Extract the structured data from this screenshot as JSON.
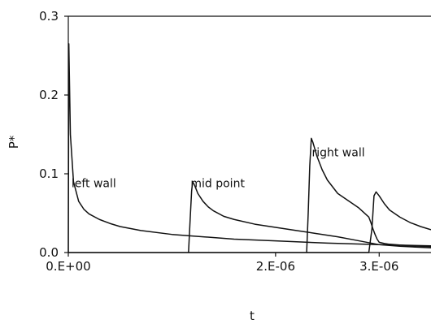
{
  "chart_data": {
    "type": "line",
    "title": "",
    "xlabel": "t",
    "ylabel": "P*",
    "xlim": [
      0,
      3.5e-06
    ],
    "ylim": [
      0,
      0.3
    ],
    "grid": false,
    "legend": "none",
    "x_ticks": [
      {
        "value": 0,
        "label": "0.E+00"
      },
      {
        "value": 2e-06,
        "label": "2.E-06"
      },
      {
        "value": 3e-06,
        "label": "3.E-06"
      }
    ],
    "y_ticks": [
      {
        "value": 0,
        "label": "0.0"
      },
      {
        "value": 0.1,
        "label": "0.1"
      },
      {
        "value": 0.2,
        "label": "0.2"
      },
      {
        "value": 0.3,
        "label": "0.3"
      }
    ],
    "annotations": [
      {
        "text": "left wall",
        "x": 3e-08,
        "y": 0.083
      },
      {
        "text": "mid point",
        "x": 1.18e-06,
        "y": 0.083
      },
      {
        "text": "right wall",
        "x": 2.35e-06,
        "y": 0.122
      }
    ],
    "series": [
      {
        "x": [
          0,
          5e-09,
          2e-08,
          5e-08,
          1e-07,
          1.5e-07,
          2e-07,
          3e-07,
          4e-07,
          5e-07,
          7e-07,
          1e-06,
          1.3e-06,
          1.6e-06,
          2e-06,
          2.5e-06,
          3e-06,
          3.5e-06
        ],
        "values": [
          0,
          0.265,
          0.15,
          0.09,
          0.065,
          0.055,
          0.049,
          0.042,
          0.037,
          0.033,
          0.028,
          0.023,
          0.02,
          0.017,
          0.0148,
          0.012,
          0.01,
          0.0085
        ]
      },
      {
        "x": [
          1.16e-06,
          1.175e-06,
          1.19e-06,
          1.2e-06,
          1.22e-06,
          1.25e-06,
          1.3e-06,
          1.35e-06,
          1.4e-06,
          1.5e-06,
          1.6e-06,
          1.8e-06,
          2e-06,
          2.2e-06,
          2.4e-06,
          2.6e-06,
          2.8e-06,
          3e-06,
          3.2e-06,
          3.5e-06
        ],
        "values": [
          0,
          0.04,
          0.078,
          0.09,
          0.085,
          0.075,
          0.065,
          0.058,
          0.053,
          0.046,
          0.042,
          0.036,
          0.032,
          0.028,
          0.024,
          0.02,
          0.015,
          0.01,
          0.008,
          0.006
        ]
      },
      {
        "x": [
          2.3e-06,
          2.315e-06,
          2.33e-06,
          2.345e-06,
          2.36e-06,
          2.4e-06,
          2.45e-06,
          2.5e-06,
          2.6e-06,
          2.7e-06,
          2.8e-06,
          2.9e-06,
          2.92e-06,
          2.94e-06,
          2.96e-06,
          2.98e-06,
          3e-06,
          3.05e-06,
          3.1e-06,
          3.2e-06,
          3.3e-06,
          3.5e-06
        ],
        "values": [
          0,
          0.05,
          0.11,
          0.145,
          0.14,
          0.122,
          0.105,
          0.092,
          0.075,
          0.066,
          0.057,
          0.045,
          0.038,
          0.03,
          0.023,
          0.017,
          0.013,
          0.0115,
          0.0105,
          0.0095,
          0.0085,
          0.0075
        ]
      },
      {
        "x": [
          0,
          5e-07,
          1e-06,
          1.5e-06,
          2e-06,
          2.5e-06,
          2.9e-06,
          2.93e-06,
          2.95e-06,
          2.97e-06,
          3e-06,
          3.05e-06,
          3.1e-06,
          3.2e-06,
          3.3e-06,
          3.4e-06,
          3.5e-06
        ],
        "values": [
          0,
          0,
          0,
          0,
          0,
          0,
          0,
          0.03,
          0.072,
          0.077,
          0.072,
          0.062,
          0.054,
          0.045,
          0.038,
          0.033,
          0.029
        ]
      }
    ]
  }
}
